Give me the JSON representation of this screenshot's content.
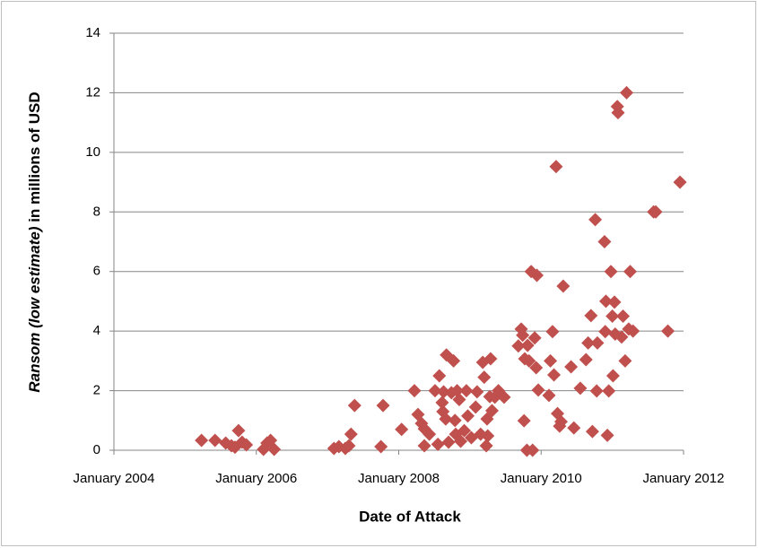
{
  "chart_data": {
    "type": "scatter",
    "x_label": "Date of Attack",
    "y_label": [
      "Ransom (low estimate)",
      " in millions of USD"
    ],
    "color": "#c0504d",
    "grid": true,
    "xlim": [
      2004,
      2012
    ],
    "xticks": [
      {
        "value": 2004,
        "label": "January 2004"
      },
      {
        "value": 2006,
        "label": "January 2006"
      },
      {
        "value": 2008,
        "label": "January 2008"
      },
      {
        "value": 2010,
        "label": "January 2010"
      },
      {
        "value": 2012,
        "label": "January 2012"
      }
    ],
    "ylim": [
      0,
      14
    ],
    "yticks": [
      0,
      2,
      4,
      6,
      8,
      10,
      12,
      14
    ],
    "x": [
      2005.23,
      2005.42,
      2005.57,
      2005.65,
      2005.7,
      2005.75,
      2005.8,
      2005.86,
      2006.1,
      2006.15,
      2006.2,
      2006.25,
      2007.09,
      2007.16,
      2007.25,
      2007.3,
      2007.33,
      2007.38,
      2007.75,
      2007.78,
      2008.04,
      2008.22,
      2008.27,
      2008.32,
      2008.36,
      2008.36,
      2008.43,
      2008.51,
      2008.55,
      2008.57,
      2008.61,
      2008.62,
      2008.63,
      2008.66,
      2008.67,
      2008.7,
      2008.74,
      2008.77,
      2008.79,
      2008.8,
      2008.82,
      2008.85,
      2008.87,
      2008.92,
      2008.95,
      2008.97,
      2009.02,
      2009.08,
      2009.1,
      2009.15,
      2009.18,
      2009.2,
      2009.23,
      2009.24,
      2009.25,
      2009.28,
      2009.29,
      2009.31,
      2009.35,
      2009.4,
      2009.48,
      2009.68,
      2009.72,
      2009.74,
      2009.76,
      2009.77,
      2009.8,
      2009.81,
      2009.83,
      2009.86,
      2009.88,
      2009.91,
      2009.93,
      2009.94,
      2009.96,
      2010.11,
      2010.13,
      2010.16,
      2010.18,
      2010.21,
      2010.23,
      2010.26,
      2010.28,
      2010.31,
      2010.42,
      2010.46,
      2010.55,
      2010.63,
      2010.66,
      2010.7,
      2010.72,
      2010.76,
      2010.78,
      2010.79,
      2010.89,
      2010.9,
      2010.91,
      2010.93,
      2010.95,
      2010.98,
      2011.0,
      2011.03,
      2011.04,
      2011.07,
      2011.08,
      2011.13,
      2011.15,
      2011.18,
      2011.2,
      2011.23,
      2011.25,
      2011.29,
      2011.58,
      2011.61,
      2011.78,
      2011.95,
      2011.01
    ],
    "values": [
      0.33,
      0.33,
      0.24,
      0.15,
      0.1,
      0.66,
      0.27,
      0.18,
      0.03,
      0.24,
      0.33,
      0.03,
      0.06,
      0.12,
      0.06,
      0.15,
      0.54,
      1.5,
      0.12,
      1.5,
      0.7,
      2.0,
      1.2,
      0.9,
      0.72,
      0.15,
      0.54,
      2.0,
      0.2,
      2.5,
      1.6,
      1.3,
      1.96,
      1.05,
      3.2,
      0.27,
      1.93,
      3.0,
      1.0,
      0.54,
      2.0,
      1.7,
      0.3,
      0.66,
      2.0,
      1.15,
      0.42,
      1.45,
      1.96,
      0.54,
      2.95,
      2.45,
      0.15,
      1.05,
      0.48,
      1.8,
      3.07,
      1.33,
      1.78,
      2.0,
      1.78,
      3.5,
      4.07,
      3.86,
      0.99,
      3.07,
      0,
      3.52,
      3.0,
      6.0,
      0,
      3.77,
      2.77,
      5.87,
      2.02,
      1.84,
      3.0,
      3.98,
      2.53,
      9.52,
      1.23,
      0.81,
      0.96,
      5.51,
      2.8,
      0.75,
      2.08,
      3.04,
      3.6,
      4.52,
      0.63,
      7.74,
      1.99,
      3.6,
      7.0,
      3.98,
      5.0,
      0.5,
      1.99,
      6.0,
      4.5,
      4.97,
      3.9,
      11.54,
      11.33,
      3.8,
      4.5,
      3.0,
      12.0,
      4.07,
      6.0,
      4.0,
      8.0,
      8.0,
      4.0,
      9.0,
      2.5
    ]
  }
}
